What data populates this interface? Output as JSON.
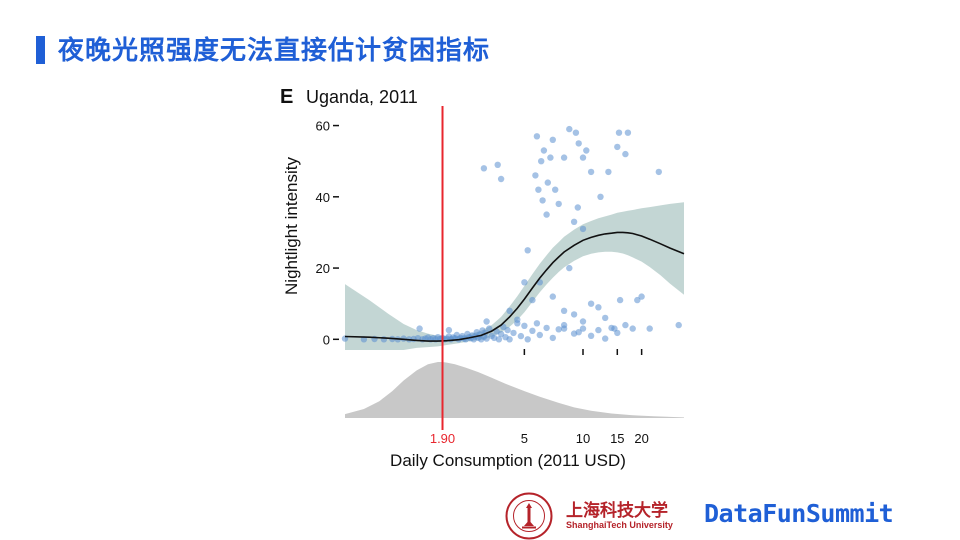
{
  "slide": {
    "title": "夜晚光照强度无法直接估计贫困指标"
  },
  "footer": {
    "university_cn": "上海科技大学",
    "university_en": "ShanghaiTech University",
    "brand": "DataFunSummit"
  },
  "colors": {
    "title": "#1f5fd6",
    "points": "#5b8fd0",
    "fit_line": "#111111",
    "ci_band": "#b9cfcd",
    "threshold": "#e8262e",
    "density": "#c8c8c8",
    "university": "#b5232a"
  },
  "chart_data": {
    "type": "scatter",
    "panel_label": "E",
    "title": "Uganda, 2011",
    "xlabel": "Daily Consumption (2011 USD)",
    "ylabel": "Nightlight intensity",
    "x_scale": "log",
    "xlim": [
      0.6,
      33
    ],
    "ylim": [
      -3,
      61
    ],
    "y_ticks": [
      0,
      20,
      40,
      60
    ],
    "y_tick_labels": [
      "0",
      "20",
      "40",
      "60"
    ],
    "x_ticks": [
      1.9,
      5,
      10,
      15,
      20
    ],
    "x_tick_labels": [
      "1.90",
      "5",
      "10",
      "15",
      "20"
    ],
    "threshold": 1.9,
    "threshold_label": "1.90",
    "points": [
      [
        0.6,
        0.2
      ],
      [
        0.75,
        0
      ],
      [
        0.85,
        0.1
      ],
      [
        0.95,
        0
      ],
      [
        1.05,
        0.1
      ],
      [
        1.12,
        0
      ],
      [
        1.2,
        0.2
      ],
      [
        1.28,
        0
      ],
      [
        1.35,
        0.1
      ],
      [
        1.42,
        0.3
      ],
      [
        1.5,
        0
      ],
      [
        1.55,
        0.2
      ],
      [
        1.6,
        0.5
      ],
      [
        1.65,
        0
      ],
      [
        1.7,
        0.3
      ],
      [
        1.75,
        0
      ],
      [
        1.8,
        0.6
      ],
      [
        1.85,
        0.1
      ],
      [
        1.9,
        0.4
      ],
      [
        1.95,
        0
      ],
      [
        2.0,
        0.2
      ],
      [
        2.05,
        0.8
      ],
      [
        2.1,
        0
      ],
      [
        2.15,
        0.5
      ],
      [
        2.2,
        0.3
      ],
      [
        2.25,
        1.2
      ],
      [
        2.3,
        0
      ],
      [
        2.35,
        0.4
      ],
      [
        2.4,
        0.9
      ],
      [
        2.45,
        0.2
      ],
      [
        2.5,
        0
      ],
      [
        2.55,
        1.5
      ],
      [
        2.6,
        0.6
      ],
      [
        2.65,
        0.3
      ],
      [
        2.7,
        1.1
      ],
      [
        2.75,
        0
      ],
      [
        2.8,
        0.8
      ],
      [
        2.85,
        2.0
      ],
      [
        2.9,
        0.4
      ],
      [
        2.95,
        1.3
      ],
      [
        3.0,
        0
      ],
      [
        3.05,
        2.5
      ],
      [
        3.1,
        0.7
      ],
      [
        3.15,
        1.8
      ],
      [
        3.2,
        0.2
      ],
      [
        3.3,
        3.0
      ],
      [
        3.4,
        1.0
      ],
      [
        3.5,
        0.4
      ],
      [
        3.6,
        2.2
      ],
      [
        3.7,
        0
      ],
      [
        3.8,
        1.5
      ],
      [
        3.9,
        3.5
      ],
      [
        4.0,
        0.6
      ],
      [
        4.1,
        2.6
      ],
      [
        4.2,
        0
      ],
      [
        4.4,
        1.8
      ],
      [
        4.6,
        5.5
      ],
      [
        4.8,
        0.9
      ],
      [
        5.0,
        3.8
      ],
      [
        5.2,
        0
      ],
      [
        5.5,
        2.4
      ],
      [
        5.8,
        4.5
      ],
      [
        6.0,
        1.2
      ],
      [
        6.5,
        3.2
      ],
      [
        7.0,
        0.4
      ],
      [
        7.5,
        2.8
      ],
      [
        8.0,
        4.0
      ],
      [
        9.0,
        1.6
      ],
      [
        10.0,
        3.0
      ],
      [
        11.0,
        1.0
      ],
      [
        12.0,
        2.6
      ],
      [
        13.0,
        0.2
      ],
      [
        14.0,
        3.2
      ],
      [
        15.0,
        1.8
      ],
      [
        1.45,
        3.0
      ],
      [
        2.05,
        2.6
      ],
      [
        3.2,
        5.0
      ],
      [
        4.2,
        8.0
      ],
      [
        4.6,
        4.5
      ],
      [
        3.1,
        48
      ],
      [
        3.65,
        49
      ],
      [
        3.8,
        45
      ],
      [
        5.0,
        16
      ],
      [
        5.2,
        25
      ],
      [
        5.7,
        46
      ],
      [
        5.8,
        57
      ],
      [
        5.9,
        42
      ],
      [
        6.1,
        50
      ],
      [
        6.3,
        53
      ],
      [
        6.6,
        44
      ],
      [
        6.8,
        51
      ],
      [
        7.0,
        56
      ],
      [
        6.2,
        39
      ],
      [
        6.5,
        35
      ],
      [
        7.2,
        42
      ],
      [
        7.5,
        38
      ],
      [
        8.0,
        51
      ],
      [
        8.5,
        59
      ],
      [
        9.2,
        58
      ],
      [
        9.5,
        55
      ],
      [
        10.0,
        51
      ],
      [
        10.4,
        53
      ],
      [
        11.0,
        47
      ],
      [
        12.3,
        40
      ],
      [
        13.5,
        47
      ],
      [
        15.0,
        54
      ],
      [
        15.3,
        58
      ],
      [
        16.5,
        52
      ],
      [
        17.0,
        58
      ],
      [
        9.4,
        37
      ],
      [
        10.0,
        31
      ],
      [
        9.0,
        33
      ],
      [
        7.0,
        12
      ],
      [
        8.0,
        8
      ],
      [
        8.5,
        20
      ],
      [
        9.0,
        7
      ],
      [
        10.0,
        5
      ],
      [
        11.0,
        10
      ],
      [
        12.0,
        9
      ],
      [
        13.0,
        6
      ],
      [
        14.5,
        3
      ],
      [
        15.5,
        11
      ],
      [
        16.5,
        4
      ],
      [
        18.0,
        3
      ],
      [
        19.0,
        11
      ],
      [
        20.0,
        12
      ],
      [
        22.0,
        3
      ],
      [
        24.5,
        47
      ],
      [
        31.0,
        4
      ],
      [
        6.0,
        16
      ],
      [
        5.5,
        11
      ],
      [
        8.0,
        3
      ],
      [
        9.5,
        2
      ]
    ],
    "fit": {
      "x": [
        0.6,
        0.8,
        1.0,
        1.2,
        1.4,
        1.6,
        1.8,
        2.0,
        2.3,
        2.6,
        3.0,
        3.4,
        3.8,
        4.2,
        4.6,
        5.0,
        5.5,
        6.0,
        6.5,
        7.0,
        7.5,
        8.0,
        9.0,
        10.0,
        11.0,
        12.0,
        13.0,
        14.0,
        15.0,
        16.0,
        17.0,
        18.0,
        20.0,
        22.0,
        25.0,
        28.0,
        33.0
      ],
      "y": [
        0.8,
        0.6,
        0.3,
        0.0,
        -0.3,
        -0.5,
        -0.5,
        -0.4,
        -0.1,
        0.4,
        1.1,
        2.3,
        4.0,
        6.3,
        8.7,
        11.3,
        14.4,
        17.2,
        19.5,
        21.5,
        23.1,
        24.5,
        26.4,
        27.8,
        28.6,
        29.2,
        29.6,
        29.8,
        30.0,
        30.0,
        29.9,
        29.7,
        29.0,
        28.1,
        26.8,
        25.6,
        24.0
      ]
    },
    "ci_upper": [
      15.5,
      11.0,
      7.2,
      4.3,
      2.6,
      1.6,
      1.0,
      0.8,
      0.9,
      1.4,
      2.4,
      4.0,
      6.3,
      9.2,
      12.1,
      15.0,
      18.3,
      21.2,
      23.6,
      25.7,
      27.3,
      28.8,
      30.8,
      32.3,
      33.2,
      34.0,
      34.5,
      35.0,
      35.5,
      35.8,
      36.1,
      36.3,
      36.8,
      37.1,
      37.6,
      38.0,
      38.5
    ],
    "ci_lower": [
      -3.0,
      -3.0,
      -3.0,
      -3.0,
      -2.4,
      -2.2,
      -2.0,
      -1.6,
      -1.1,
      -0.6,
      -0.1,
      0.7,
      1.9,
      3.5,
      5.4,
      7.6,
      10.5,
      13.2,
      15.4,
      17.3,
      18.9,
      20.2,
      22.0,
      23.3,
      24.0,
      24.4,
      24.6,
      24.6,
      24.4,
      24.1,
      23.6,
      23.0,
      21.8,
      20.3,
      18.0,
      15.6,
      12.5
    ],
    "density": {
      "x": [
        0.6,
        0.75,
        0.9,
        1.05,
        1.2,
        1.4,
        1.6,
        1.8,
        1.9,
        2.0,
        2.2,
        2.5,
        2.9,
        3.4,
        4.0,
        5.0,
        6.0,
        7.5,
        9.0,
        11.0,
        14.0,
        18.0,
        23.0,
        28.0,
        33.0
      ],
      "y": [
        0.07,
        0.16,
        0.3,
        0.48,
        0.67,
        0.85,
        0.96,
        1.0,
        1.0,
        0.99,
        0.96,
        0.9,
        0.82,
        0.72,
        0.61,
        0.48,
        0.38,
        0.27,
        0.19,
        0.13,
        0.08,
        0.05,
        0.03,
        0.02,
        0.01
      ]
    }
  }
}
